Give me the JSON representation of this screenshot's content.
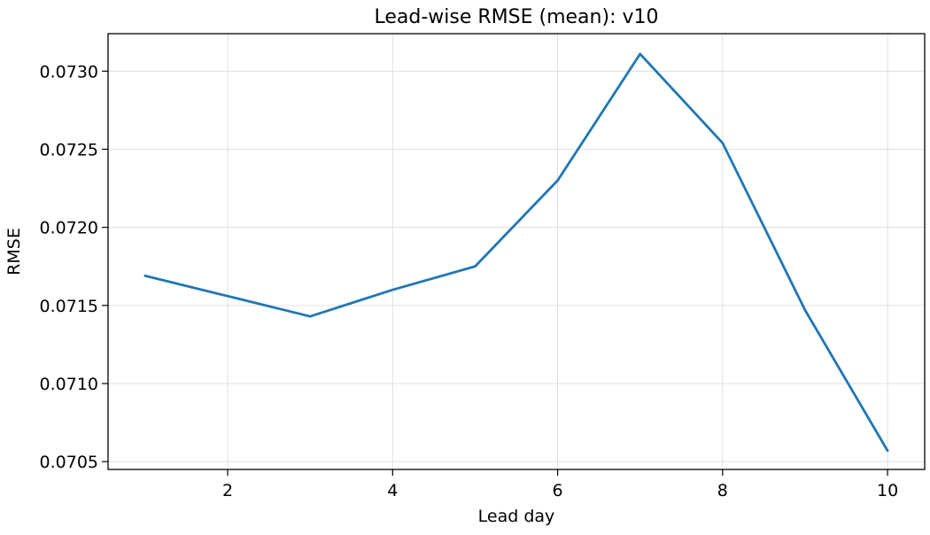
{
  "chart_data": {
    "type": "line",
    "title": "Lead-wise RMSE (mean): v10",
    "xlabel": "Lead day",
    "ylabel": "RMSE",
    "x": [
      1,
      2,
      3,
      4,
      5,
      6,
      7,
      8,
      9,
      10
    ],
    "series": [
      {
        "values": [
          0.07169,
          0.07156,
          0.07143,
          0.0716,
          0.07175,
          0.0723,
          0.07311,
          0.07254,
          0.07147,
          0.07057
        ],
        "color": "#1f77b4"
      }
    ],
    "xlim": [
      0.55,
      10.45
    ],
    "ylim": [
      0.07045,
      0.07324
    ],
    "xticks": [
      2,
      4,
      6,
      8,
      10
    ],
    "xtick_labels": [
      "2",
      "4",
      "6",
      "8",
      "10"
    ],
    "yticks": [
      0.0705,
      0.071,
      0.0715,
      0.072,
      0.0725,
      0.073
    ],
    "ytick_labels": [
      "0.0705",
      "0.0710",
      "0.0715",
      "0.0720",
      "0.0725",
      "0.0730"
    ],
    "grid": true
  }
}
